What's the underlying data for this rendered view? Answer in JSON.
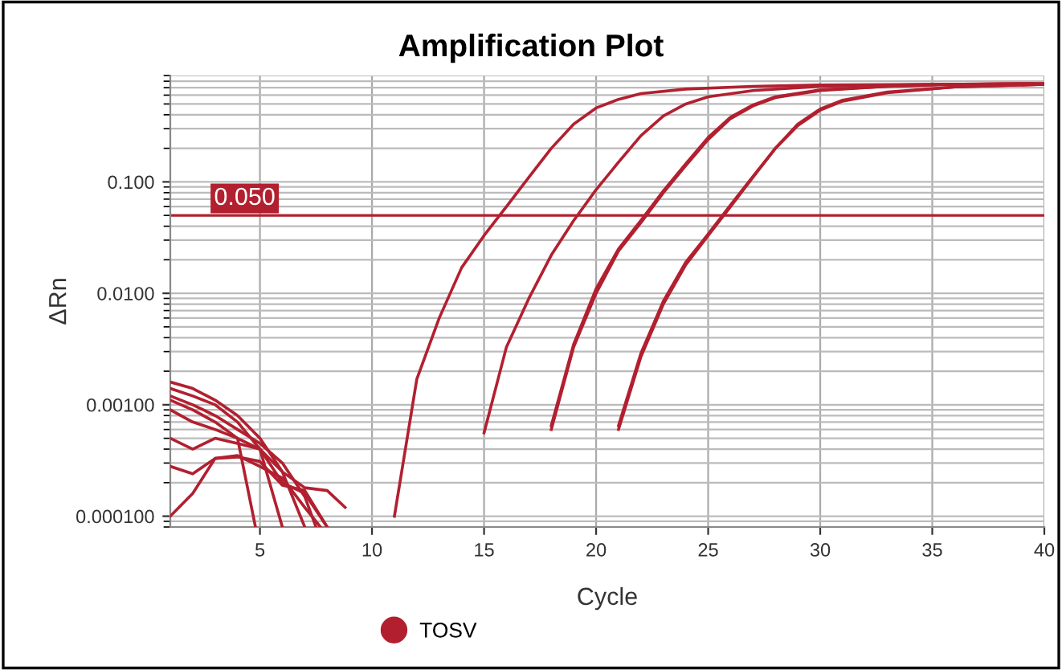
{
  "chart_data": {
    "type": "line",
    "title": "Amplification Plot",
    "xlabel": "Cycle",
    "ylabel": "ΔRn",
    "log": "y",
    "xlim": [
      1,
      40
    ],
    "xticks": [
      5,
      10,
      15,
      20,
      25,
      30,
      35,
      40
    ],
    "ylim": [
      8e-05,
      0.9
    ],
    "yticks": [
      {
        "value": 0.1,
        "label": "0.100"
      },
      {
        "value": 0.01,
        "label": "0.0100"
      },
      {
        "value": 0.001,
        "label": "0.00100"
      },
      {
        "value": 0.0001,
        "label": "0.000100"
      }
    ],
    "grid": true,
    "legend": "bottom",
    "line_style": "solid",
    "marker": "none",
    "ref_lines": [
      {
        "axis": "y",
        "value": 0.05,
        "label": "0.050",
        "color": "#b22030"
      }
    ],
    "series": [
      {
        "name": "TOSV",
        "color": "#b22030",
        "x": [
          11,
          12,
          13,
          14,
          15,
          16,
          17,
          18,
          19,
          20,
          21,
          22,
          24,
          27,
          30,
          35,
          40
        ],
        "values": [
          0.0001,
          0.0017,
          0.006,
          0.017,
          0.033,
          0.06,
          0.11,
          0.2,
          0.33,
          0.46,
          0.55,
          0.62,
          0.68,
          0.72,
          0.74,
          0.75,
          0.76
        ]
      },
      {
        "color": "#b22030",
        "x": [
          15,
          16,
          17,
          18,
          19,
          20,
          21,
          22,
          23,
          24,
          25,
          27,
          30,
          35,
          40
        ],
        "values": [
          0.00056,
          0.0033,
          0.009,
          0.022,
          0.045,
          0.085,
          0.15,
          0.26,
          0.39,
          0.5,
          0.58,
          0.66,
          0.72,
          0.75,
          0.76
        ]
      },
      {
        "color": "#b22030",
        "x": [
          18,
          19,
          20,
          21,
          22,
          23,
          24,
          25,
          26,
          27,
          28,
          30,
          33,
          36,
          40
        ],
        "values": [
          0.0006,
          0.0033,
          0.01,
          0.024,
          0.043,
          0.08,
          0.14,
          0.24,
          0.37,
          0.48,
          0.57,
          0.66,
          0.72,
          0.75,
          0.76
        ]
      },
      {
        "color": "#b22030",
        "x": [
          18,
          19,
          20,
          21,
          22,
          23,
          24,
          25,
          26,
          27,
          28,
          30,
          33,
          36,
          40
        ],
        "values": [
          0.00065,
          0.0035,
          0.011,
          0.025,
          0.045,
          0.083,
          0.145,
          0.25,
          0.38,
          0.49,
          0.58,
          0.67,
          0.72,
          0.75,
          0.76
        ]
      },
      {
        "color": "#b22030",
        "x": [
          21,
          22,
          23,
          24,
          25,
          26,
          27,
          28,
          29,
          30,
          31,
          33,
          36,
          40
        ],
        "values": [
          0.0006,
          0.0027,
          0.008,
          0.018,
          0.033,
          0.06,
          0.11,
          0.2,
          0.32,
          0.44,
          0.53,
          0.63,
          0.71,
          0.75
        ]
      },
      {
        "color": "#b22030",
        "x": [
          21,
          22,
          23,
          24,
          25,
          26,
          27,
          28,
          29,
          30,
          31,
          33,
          36,
          40
        ],
        "values": [
          0.00065,
          0.0029,
          0.0085,
          0.019,
          0.034,
          0.062,
          0.112,
          0.2,
          0.33,
          0.45,
          0.54,
          0.64,
          0.71,
          0.75
        ]
      },
      {
        "color": "#b22030",
        "x": [
          1,
          2,
          3,
          4,
          5,
          6,
          7
        ],
        "values": [
          0.0016,
          0.0014,
          0.0011,
          0.0008,
          0.0005,
          0.00025,
          8e-05
        ]
      },
      {
        "color": "#b22030",
        "x": [
          1,
          2,
          3,
          4,
          5,
          6
        ],
        "values": [
          0.0014,
          0.0012,
          0.001,
          0.0007,
          0.0004,
          8e-05
        ]
      },
      {
        "color": "#b22030",
        "x": [
          1,
          2,
          3,
          4,
          5,
          6,
          7,
          7.5
        ],
        "values": [
          0.0012,
          0.001,
          0.0008,
          0.0006,
          0.00045,
          0.0003,
          0.00015,
          8e-05
        ]
      },
      {
        "color": "#b22030",
        "x": [
          1,
          2,
          3,
          4,
          4.8
        ],
        "values": [
          0.0011,
          0.0009,
          0.0007,
          0.0005,
          8e-05
        ]
      },
      {
        "color": "#b22030",
        "x": [
          1,
          2,
          3,
          4,
          5,
          6,
          7,
          8
        ],
        "values": [
          0.0009,
          0.0007,
          0.0006,
          0.0005,
          0.0004,
          0.0002,
          0.00016,
          8e-05
        ]
      },
      {
        "color": "#b22030",
        "x": [
          1,
          2,
          3,
          4,
          5,
          6,
          7,
          8,
          8.8
        ],
        "values": [
          0.0005,
          0.0004,
          0.0005,
          0.00045,
          0.0004,
          0.00025,
          0.00018,
          0.00017,
          0.00012
        ]
      },
      {
        "color": "#b22030",
        "x": [
          1,
          2,
          3,
          4,
          5,
          6,
          7,
          8
        ],
        "values": [
          0.00028,
          0.00024,
          0.00033,
          0.00034,
          0.00031,
          0.00019,
          0.00017,
          8e-05
        ]
      },
      {
        "color": "#b22030",
        "x": [
          1,
          2,
          3,
          4,
          5,
          6,
          7,
          7.7
        ],
        "values": [
          0.0001,
          0.00016,
          0.00033,
          0.00035,
          0.00028,
          0.00022,
          0.00012,
          8e-05
        ]
      }
    ]
  }
}
